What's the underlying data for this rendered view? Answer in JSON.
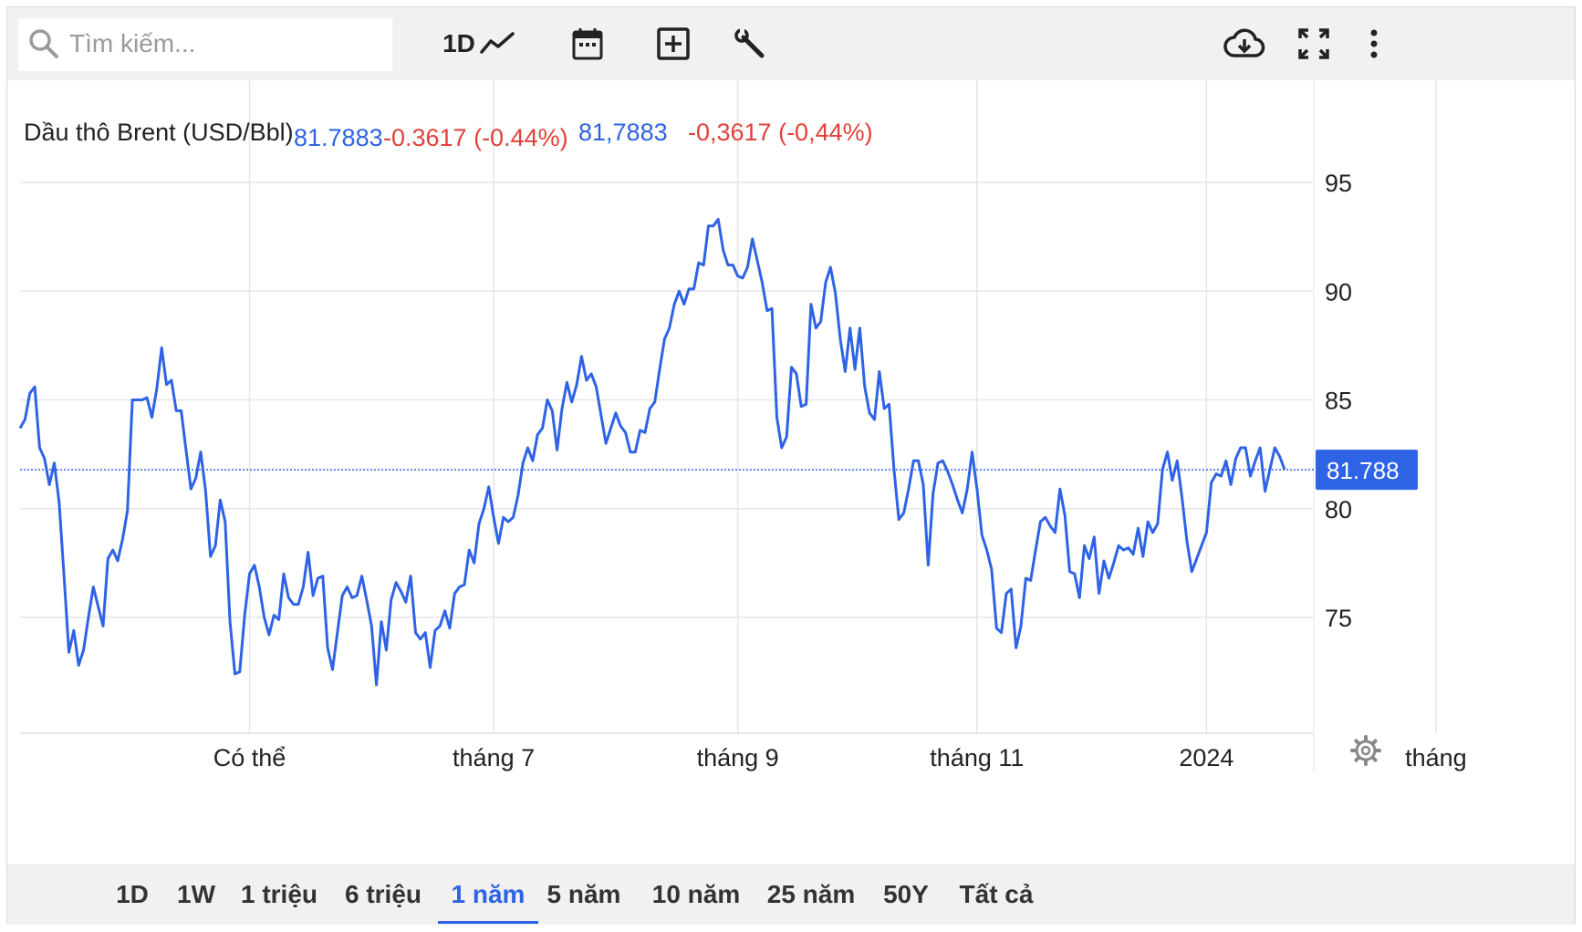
{
  "toolbar": {
    "search_placeholder": "Tìm kiếm...",
    "interval_label": "1D",
    "icons": [
      "search-icon",
      "line-chart-icon",
      "calendar-icon",
      "add-indicator-icon",
      "wrench-icon",
      "cloud-download-icon",
      "fullscreen-icon",
      "more-vertical-icon"
    ]
  },
  "legend": {
    "title": "Dầu thô Brent (USD/Bbl)",
    "price": "81.7883",
    "change": "-0.3617 (-0.44%)",
    "price_local": "81,7883",
    "change_local": "-0,3617 (-0,44%)"
  },
  "colors": {
    "line": "#2e63e6",
    "negative": "#e0423a",
    "label_bg": "#2e63e6",
    "grid": "#e6e6e6"
  },
  "chart_data": {
    "type": "line",
    "title": "Dầu thô Brent (USD/Bbl)",
    "ylim": [
      70.5,
      98.5
    ],
    "y_ticks": [
      95,
      90,
      85,
      80,
      75
    ],
    "y_tick_labels": [
      "95",
      "90",
      "85",
      "80",
      "75"
    ],
    "x_ticks": [
      {
        "label": "Có thể",
        "index": 47
      },
      {
        "label": "tháng 7",
        "index": 97
      },
      {
        "label": "tháng 9",
        "index": 147
      },
      {
        "label": "tháng 11",
        "index": 196
      },
      {
        "label": "2024",
        "index": 243
      },
      {
        "label": "tháng",
        "index": 290
      }
    ],
    "last_value": 81.788,
    "last_value_label": "81.788",
    "series": [
      {
        "values": [
          83.7,
          84.1,
          85.3,
          85.6,
          82.8,
          82.3,
          81.1,
          82.1,
          80.3,
          76.9,
          73.4,
          74.4,
          72.8,
          73.5,
          75.0,
          76.4,
          75.5,
          74.6,
          77.7,
          78.1,
          77.6,
          78.6,
          79.9,
          85.0,
          85.0,
          85.0,
          85.1,
          84.2,
          85.5,
          87.4,
          85.7,
          85.9,
          84.5,
          84.5,
          82.7,
          80.9,
          81.4,
          82.6,
          80.8,
          77.8,
          78.3,
          80.4,
          79.4,
          74.8,
          72.4,
          72.5,
          75.1,
          77.0,
          77.4,
          76.4,
          75.0,
          74.2,
          75.1,
          74.9,
          77.0,
          75.9,
          75.6,
          75.6,
          76.4,
          78.0,
          76.0,
          76.8,
          76.9,
          73.6,
          72.6,
          74.3,
          76.0,
          76.4,
          75.9,
          76.0,
          76.9,
          75.8,
          74.6,
          71.9,
          74.8,
          73.5,
          75.8,
          76.6,
          76.2,
          75.7,
          76.9,
          74.3,
          74.0,
          74.3,
          72.7,
          74.4,
          74.6,
          75.3,
          74.5,
          76.1,
          76.4,
          76.5,
          78.1,
          77.5,
          79.3,
          80.0,
          81.0,
          79.6,
          78.4,
          79.6,
          79.4,
          79.6,
          80.6,
          82.1,
          82.8,
          82.2,
          83.4,
          83.7,
          85.0,
          84.5,
          82.7,
          84.6,
          85.8,
          84.9,
          85.7,
          87.0,
          85.9,
          86.2,
          85.6,
          84.3,
          83.0,
          83.7,
          84.4,
          83.8,
          83.5,
          82.6,
          82.6,
          83.6,
          83.5,
          84.6,
          84.9,
          86.4,
          87.8,
          88.3,
          89.4,
          90.0,
          89.4,
          90.1,
          90.1,
          91.3,
          91.2,
          93.0,
          93.0,
          93.3,
          91.9,
          91.2,
          91.2,
          90.7,
          90.6,
          91.1,
          92.4,
          91.4,
          90.4,
          89.1,
          89.2,
          84.2,
          82.8,
          83.3,
          86.5,
          86.2,
          84.7,
          84.8,
          89.4,
          88.3,
          88.6,
          90.4,
          91.1,
          89.9,
          87.8,
          86.3,
          88.3,
          86.4,
          88.3,
          85.6,
          84.4,
          84.1,
          86.3,
          84.6,
          84.8,
          81.8,
          79.5,
          79.8,
          80.9,
          82.2,
          82.2,
          81.1,
          77.4,
          80.7,
          82.1,
          82.2,
          81.7,
          81.1,
          80.4,
          79.8,
          80.9,
          82.6,
          80.9,
          78.8,
          78.1,
          77.2,
          74.5,
          74.3,
          76.1,
          76.3,
          73.6,
          74.6,
          76.8,
          76.7,
          78.1,
          79.4,
          79.6,
          79.2,
          78.9,
          80.9,
          79.7,
          77.1,
          77.0,
          75.9,
          78.3,
          77.7,
          78.7,
          76.1,
          77.6,
          76.8,
          77.5,
          78.3,
          78.1,
          78.2,
          77.9,
          79.1,
          77.8,
          79.4,
          78.9,
          79.3,
          81.8,
          82.6,
          81.3,
          82.2,
          80.5,
          78.5,
          77.1,
          77.7,
          78.3,
          78.9,
          81.2,
          81.6,
          81.5,
          82.2,
          81.1,
          82.3,
          82.8,
          82.8,
          81.5,
          82.2,
          82.8,
          80.8,
          81.8,
          82.8,
          82.4,
          81.8
        ]
      }
    ]
  },
  "ranges": [
    {
      "label": "1D",
      "active": false
    },
    {
      "label": "1W",
      "active": false
    },
    {
      "label": "1 triệu",
      "active": false
    },
    {
      "label": "6 triệu",
      "active": false
    },
    {
      "label": "1 năm",
      "active": true
    },
    {
      "label": "5 năm",
      "active": false
    },
    {
      "label": "10 năm",
      "active": false
    },
    {
      "label": "25 năm",
      "active": false
    },
    {
      "label": "50Y",
      "active": false
    },
    {
      "label": "Tất cả",
      "active": false
    }
  ]
}
